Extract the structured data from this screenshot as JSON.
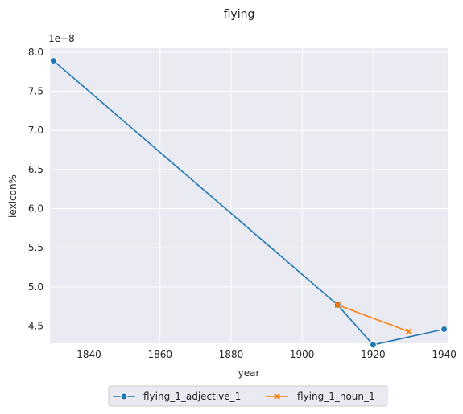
{
  "chart_data": {
    "type": "line",
    "title": "flying",
    "xlabel": "year",
    "ylabel": "lexicon%",
    "y_offset_label": "1e−8",
    "xlim": [
      1829,
      1941
    ],
    "ylim": [
      4.28,
      8.05
    ],
    "x_ticks": [
      1840,
      1860,
      1880,
      1900,
      1920,
      1940
    ],
    "y_ticks": [
      4.5,
      5.0,
      5.5,
      6.0,
      6.5,
      7.0,
      7.5,
      8.0
    ],
    "x_tick_labels": [
      "1840",
      "1860",
      "1880",
      "1900",
      "1920",
      "1940"
    ],
    "y_tick_labels": [
      "4.5",
      "5.0",
      "5.5",
      "6.0",
      "6.5",
      "7.0",
      "7.5",
      "8.0"
    ],
    "grid": true,
    "legend_placement": "bottom-center",
    "series": [
      {
        "name": "flying_1_adjective_1",
        "color": "#1f77b4",
        "marker": "circle",
        "x": [
          1830,
          1910,
          1920,
          1940
        ],
        "y": [
          7.89,
          4.77,
          4.26,
          4.46
        ]
      },
      {
        "name": "flying_1_noun_1",
        "color": "#ff7f0e",
        "marker": "x",
        "x": [
          1910,
          1930
        ],
        "y": [
          4.77,
          4.43
        ]
      }
    ]
  }
}
